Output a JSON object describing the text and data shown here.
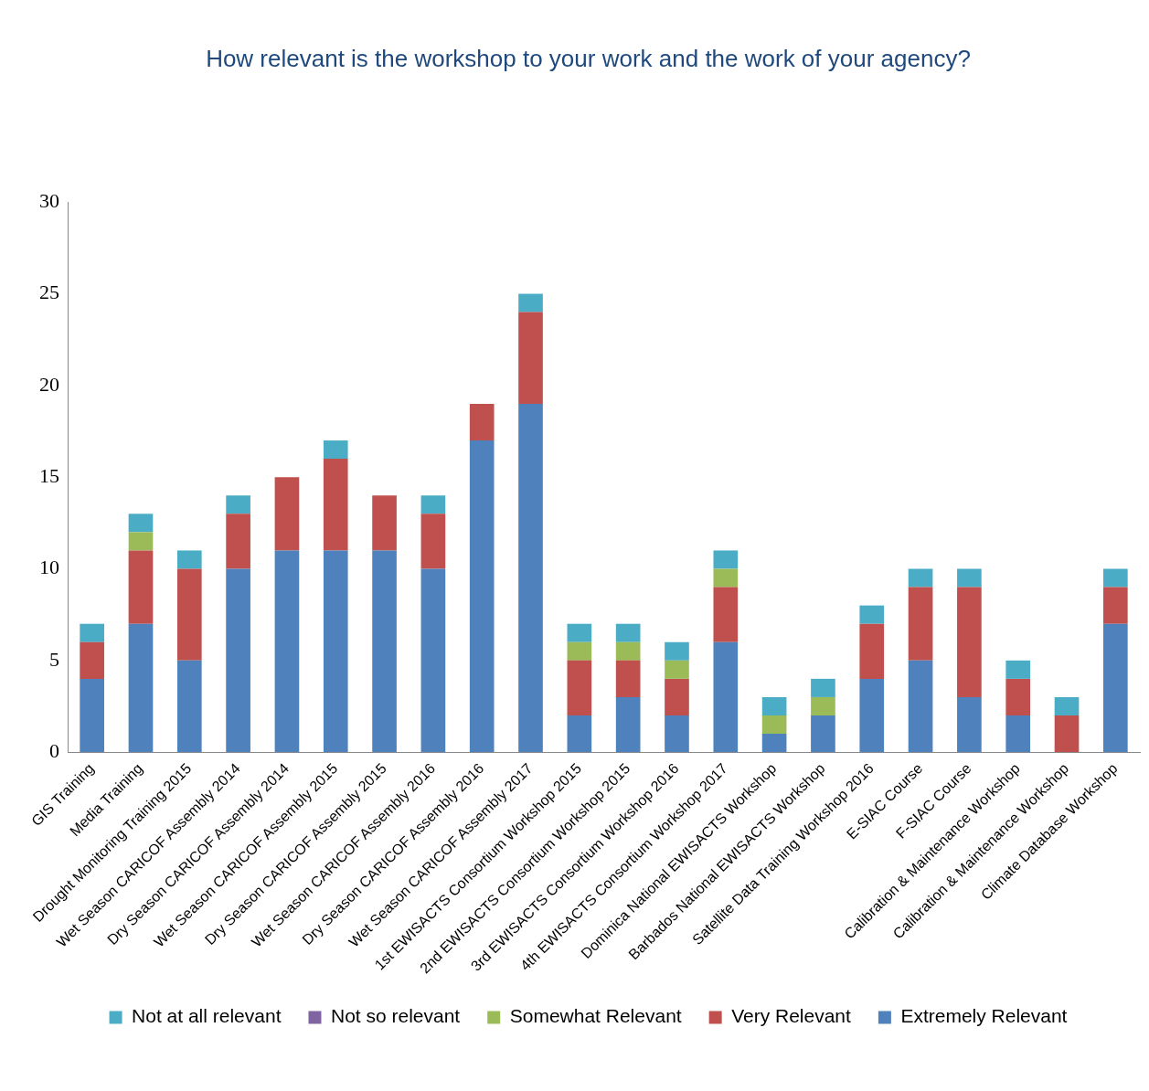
{
  "chart_data": {
    "type": "bar",
    "stacked": true,
    "title": "How relevant is the workshop to your work and the work of your agency?",
    "categories": [
      "GIS Training",
      "Media Training",
      "Drought Monitoring Training 2015",
      "Wet Season CARICOF Assembly 2014",
      "Dry Season CARICOF Assembly 2014",
      "Wet Season CARICOF Assembly 2015",
      "Dry Season CARICOF Assembly 2015",
      "Wet Season CARICOF Assembly 2016",
      "Dry Season CARICOF Assembly 2016",
      "Wet Season CARICOF Assembly 2017",
      "1st EWISACTS Consortium Workshop 2015",
      "2nd EWISACTS Consortium Workshop 2015",
      "3rd EWISACTS Consortium Workshop 2016",
      "4th EWISACTS Consortium Workshop 2017",
      "Dominica National EWISACTS Workshop",
      "Barbados National EWISACTS Workshop",
      "Satellite Data Training Workshop 2016",
      "E-SIAC Course",
      "F-SIAC Course",
      "Calibration & Maintenance Workshop",
      "Calibration & Maintenance Workshop",
      "Climate Database Workshop"
    ],
    "series": [
      {
        "name": "Extremely Relevant",
        "color": "#4f81bd",
        "values": [
          4,
          7,
          5,
          10,
          11,
          11,
          11,
          10,
          17,
          19,
          2,
          3,
          2,
          6,
          1,
          2,
          4,
          5,
          3,
          2,
          0,
          7
        ]
      },
      {
        "name": "Very Relevant",
        "color": "#c0504d",
        "values": [
          2,
          4,
          5,
          3,
          4,
          5,
          3,
          3,
          2,
          5,
          3,
          2,
          2,
          3,
          0,
          0,
          3,
          4,
          6,
          2,
          2,
          2
        ]
      },
      {
        "name": "Somewhat Relevant",
        "color": "#9bbb59",
        "values": [
          0,
          1,
          0,
          0,
          0,
          0,
          0,
          0,
          0,
          0,
          1,
          1,
          1,
          1,
          1,
          1,
          0,
          0,
          0,
          0,
          0,
          0
        ]
      },
      {
        "name": "Not so relevant",
        "color": "#8064a2",
        "values": [
          0,
          0,
          0,
          0,
          0,
          0,
          0,
          0,
          0,
          0,
          0,
          0,
          0,
          0,
          0,
          0,
          0,
          0,
          0,
          0,
          0,
          0
        ]
      },
      {
        "name": "Not at all relevant",
        "color": "#4bacc6",
        "values": [
          1,
          1,
          1,
          1,
          0,
          1,
          0,
          1,
          0,
          1,
          1,
          1,
          1,
          1,
          1,
          1,
          1,
          1,
          1,
          1,
          1,
          1
        ]
      }
    ],
    "ylim": [
      0,
      30
    ],
    "yticks": [
      0,
      5,
      10,
      15,
      20,
      25,
      30
    ],
    "grid": false,
    "legend": "bottom"
  }
}
